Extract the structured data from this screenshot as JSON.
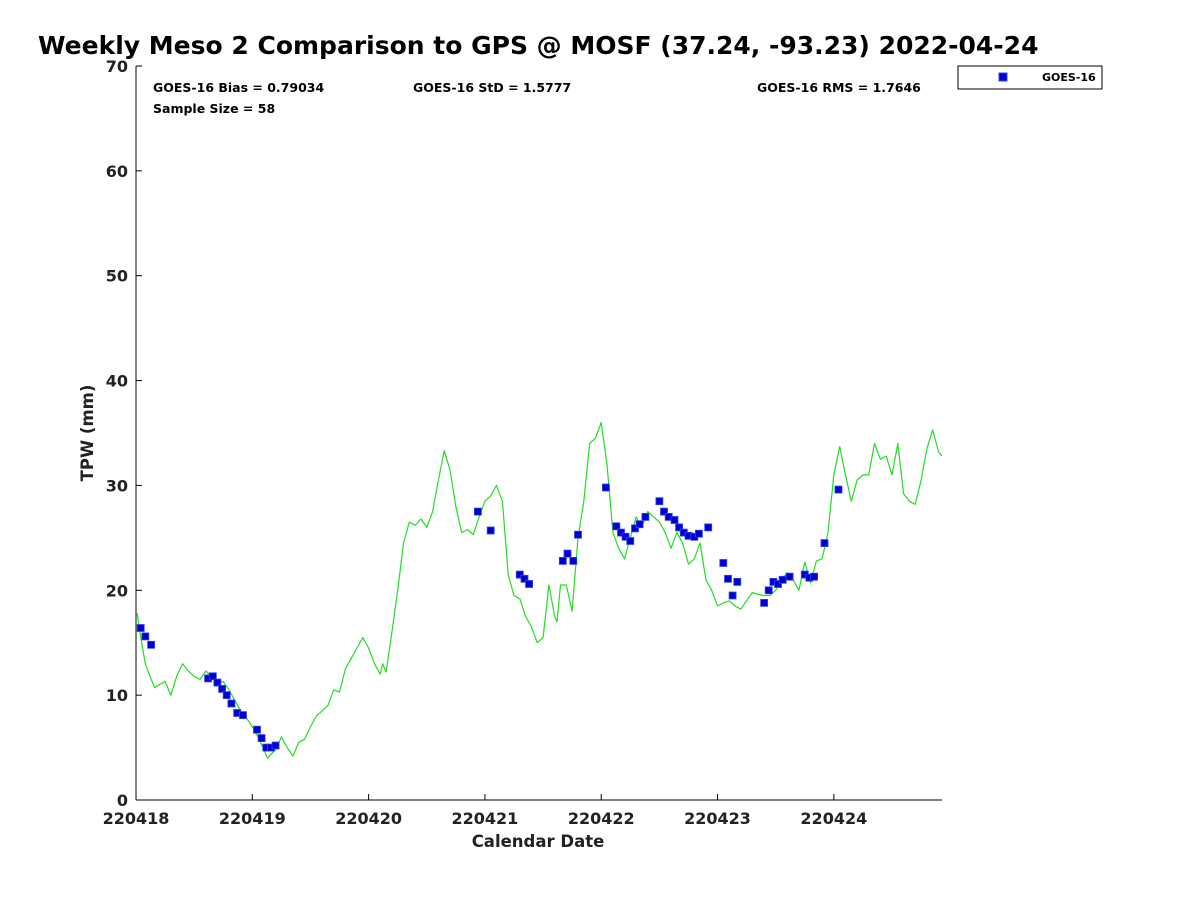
{
  "chart_data": {
    "type": "line",
    "title": "Weekly Meso 2 Comparison to GPS @ MOSF (37.24, -93.23) 2022-04-24",
    "xlabel": "Calendar Date",
    "ylabel": "TPW (mm)",
    "xlim": [
      220418,
      220424.93
    ],
    "ylim": [
      0,
      70
    ],
    "yticks": [
      0,
      10,
      20,
      30,
      40,
      50,
      60,
      70
    ],
    "xticks": [
      {
        "value": 220418,
        "label": "220418"
      },
      {
        "value": 220419,
        "label": "220419"
      },
      {
        "value": 220420,
        "label": "220420"
      },
      {
        "value": 220421,
        "label": "220421"
      },
      {
        "value": 220422,
        "label": "220422"
      },
      {
        "value": 220423,
        "label": "220423"
      },
      {
        "value": 220424,
        "label": "220424"
      }
    ],
    "grid": false,
    "legend": {
      "position": "top-right",
      "entries": [
        "GOES-16"
      ]
    },
    "stats": {
      "bias": "GOES-16 Bias = 0.79034",
      "std": "GOES-16 StD = 1.5777",
      "rms": "GOES-16 RMS = 1.7646",
      "sample": "Sample Size = 58"
    },
    "colors": {
      "gps_line": "#22dd22",
      "goes_marker": "#0000cc",
      "goes_marker_edge": "#3344ee"
    },
    "series": [
      {
        "kind": "line",
        "x": [
          220418.01,
          220418.04,
          220418.08,
          220418.12,
          220418.16,
          220418.2,
          220418.25,
          220418.3,
          220418.35,
          220418.4,
          220418.45,
          220418.5,
          220418.55,
          220418.6,
          220418.65,
          220418.7,
          220418.75,
          220418.8,
          220418.85,
          220418.9,
          220418.95,
          220419,
          220419.05,
          220419.1,
          220419.13,
          220419.2,
          220419.25,
          220419.3,
          220419.35,
          220419.4,
          220419.45,
          220419.5,
          220419.55,
          220419.6,
          220419.65,
          220419.7,
          220419.75,
          220419.8,
          220419.85,
          220419.9,
          220419.95,
          220420,
          220420.05,
          220420.1,
          220420.12,
          220420.15,
          220420.2,
          220420.25,
          220420.3,
          220420.35,
          220420.4,
          220420.45,
          220420.5,
          220420.55,
          220420.6,
          220420.65,
          220420.7,
          220420.75,
          220420.8,
          220420.85,
          220420.9,
          220420.95,
          220421,
          220421.05,
          220421.1,
          220421.15,
          220421.2,
          220421.25,
          220421.3,
          220421.35,
          220421.4,
          220421.45,
          220421.5,
          220421.55,
          220421.6,
          220421.62,
          220421.65,
          220421.7,
          220421.75,
          220421.8,
          220421.85,
          220421.9,
          220421.95,
          220422,
          220422.05,
          220422.1,
          220422.15,
          220422.2,
          220422.25,
          220422.3,
          220422.35,
          220422.4,
          220422.45,
          220422.5,
          220422.55,
          220422.6,
          220422.65,
          220422.7,
          220422.75,
          220422.8,
          220422.85,
          220422.9,
          220422.95,
          220423,
          220423.05,
          220423.1,
          220423.15,
          220423.2,
          220423.25,
          220423.3,
          220423.35,
          220423.4,
          220423.45,
          220423.5,
          220423.55,
          220423.6,
          220423.65,
          220423.7,
          220423.75,
          220423.8,
          220423.85,
          220423.9,
          220423.95,
          220424,
          220424.05,
          220424.1,
          220424.15,
          220424.2,
          220424.25,
          220424.3,
          220424.35,
          220424.4,
          220424.45,
          220424.5,
          220424.55,
          220424.6,
          220424.65,
          220424.7,
          220424.75,
          220424.8,
          220424.85,
          220424.9,
          220424.93
        ],
        "values": [
          17.8,
          15.5,
          13.0,
          11.8,
          10.7,
          11.0,
          11.3,
          10.0,
          11.8,
          13.0,
          12.3,
          11.8,
          11.5,
          12.3,
          11.8,
          11.2,
          11.3,
          10.5,
          9.5,
          8.5,
          7.8,
          7.0,
          6.0,
          4.8,
          4.0,
          4.8,
          6.0,
          5.0,
          4.2,
          5.5,
          5.8,
          7.0,
          8.0,
          8.5,
          9.0,
          10.5,
          10.3,
          12.5,
          13.5,
          14.5,
          15.5,
          14.5,
          13.0,
          12.0,
          13.0,
          12.2,
          16.0,
          20.0,
          24.5,
          26.5,
          26.2,
          26.8,
          26.0,
          27.5,
          30.5,
          33.3,
          31.5,
          28.0,
          25.5,
          25.8,
          25.3,
          27.0,
          28.5,
          29.0,
          30.0,
          28.5,
          21.5,
          19.5,
          19.2,
          17.5,
          16.5,
          15.0,
          15.5,
          20.5,
          17.5,
          17.0,
          20.5,
          20.5,
          18.0,
          25.0,
          28.5,
          34.0,
          34.5,
          36.0,
          32.0,
          25.5,
          24.0,
          23.0,
          25.0,
          27.0,
          26.0,
          27.5,
          27.0,
          26.5,
          25.5,
          24.0,
          25.5,
          24.5,
          22.5,
          23.0,
          24.5,
          21.0,
          20.0,
          18.5,
          18.8,
          19.0,
          18.5,
          18.2,
          19.0,
          19.8,
          19.6,
          19.5,
          19.5,
          20.0,
          21.0,
          21.7,
          21.0,
          20.0,
          22.7,
          20.7,
          22.8,
          23.0,
          25.5,
          31.0,
          33.7,
          31.0,
          28.5,
          30.5,
          31.0,
          31.0,
          34.0,
          32.5,
          32.8,
          31.0,
          34.0,
          29.2,
          28.5,
          28.2,
          30.5,
          33.5,
          35.3,
          33.2,
          32.8
        ]
      },
      {
        "name": "GOES-16",
        "kind": "scatter",
        "x": [
          220418.04,
          220418.08,
          220418.13,
          220418.62,
          220418.66,
          220418.7,
          220418.74,
          220418.78,
          220418.82,
          220418.87,
          220418.92,
          220419.04,
          220419.08,
          220419.12,
          220419.16,
          220419.2,
          220420.94,
          220421.05,
          220421.3,
          220421.34,
          220421.38,
          220421.67,
          220421.71,
          220421.76,
          220421.8,
          220422.04,
          220422.13,
          220422.17,
          220422.21,
          220422.25,
          220422.29,
          220422.33,
          220422.38,
          220422.5,
          220422.54,
          220422.58,
          220422.63,
          220422.67,
          220422.71,
          220422.75,
          220422.8,
          220422.84,
          220422.92,
          220423.05,
          220423.09,
          220423.13,
          220423.17,
          220423.4,
          220423.44,
          220423.48,
          220423.52,
          220423.56,
          220423.62,
          220423.75,
          220423.79,
          220423.83,
          220423.92,
          220424.04
        ],
        "values": [
          16.4,
          15.6,
          14.8,
          11.6,
          11.8,
          11.2,
          10.6,
          10.0,
          9.2,
          8.3,
          8.1,
          6.7,
          5.9,
          5.0,
          5.0,
          5.2,
          27.5,
          25.7,
          21.5,
          21.1,
          20.6,
          22.8,
          23.5,
          22.8,
          25.3,
          29.8,
          26.1,
          25.5,
          25.1,
          24.7,
          25.9,
          26.3,
          27.0,
          28.5,
          27.5,
          27.0,
          26.7,
          26.0,
          25.5,
          25.2,
          25.1,
          25.4,
          26.0,
          22.6,
          21.1,
          19.5,
          20.8,
          18.8,
          20.0,
          20.8,
          20.6,
          21.0,
          21.3,
          21.5,
          21.2,
          21.3,
          24.5,
          29.6
        ]
      }
    ]
  }
}
